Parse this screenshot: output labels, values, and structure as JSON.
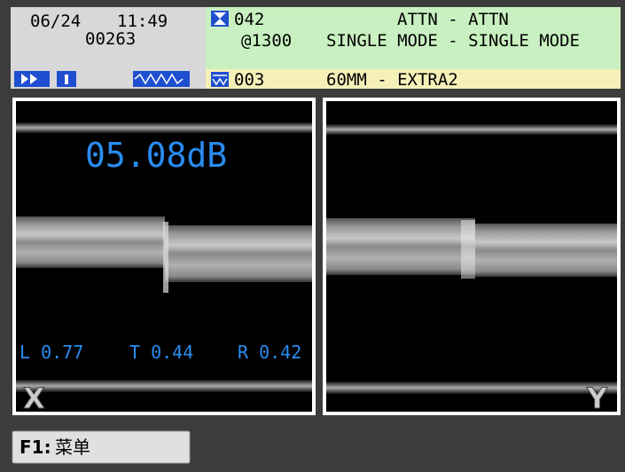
{
  "header": {
    "date": "06/24",
    "time": "11:49",
    "count": "00263",
    "program_number": "042",
    "wavelength": "@1300",
    "splice_mode": "ATTN - ATTN",
    "fiber_type": "SINGLE MODE - SINGLE MODE",
    "heat_number": "003",
    "heat_mode": "60MM - EXTRA2"
  },
  "image_x": {
    "loss": "05.08dB",
    "left": "L 0.77",
    "center": "T 0.44",
    "right": "R 0.42",
    "label": "X"
  },
  "image_y": {
    "label": "Y"
  },
  "softkey": {
    "key": "F1:",
    "label": "菜单"
  }
}
